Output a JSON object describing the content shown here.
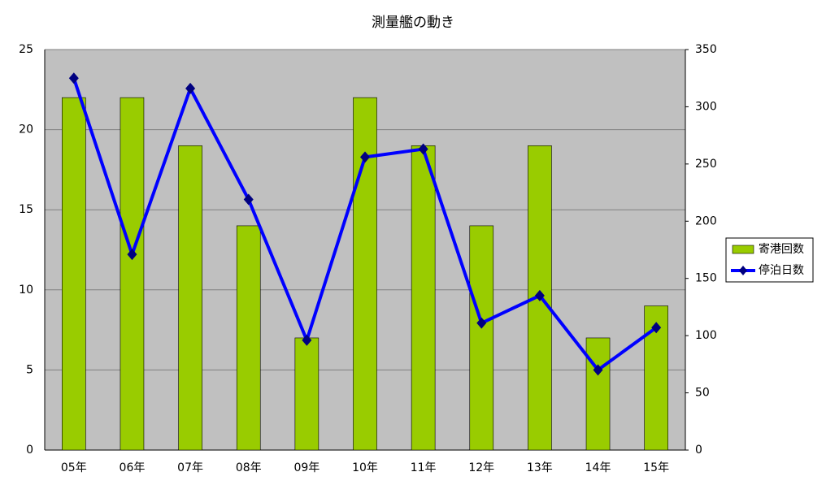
{
  "chart_data": {
    "type": "bar",
    "title": "測量艦の動き",
    "categories": [
      "05年",
      "06年",
      "07年",
      "08年",
      "09年",
      "10年",
      "11年",
      "12年",
      "13年",
      "14年",
      "15年"
    ],
    "series": [
      {
        "name": "寄港回数",
        "type": "bar",
        "color": "#99cc00",
        "values": [
          22,
          22,
          19,
          14,
          7,
          22,
          19,
          14,
          19,
          7,
          9
        ]
      },
      {
        "name": "停泊日数",
        "type": "line",
        "axis": "y2",
        "color": "#0000ff",
        "marker_color": "#000080",
        "values": [
          325,
          171,
          316,
          219,
          96,
          256,
          263,
          111,
          135,
          70,
          107
        ]
      }
    ],
    "ylim": [
      0,
      25
    ],
    "yticks": [
      0,
      5,
      10,
      15,
      20,
      25
    ],
    "y2lim": [
      0,
      350
    ],
    "y2ticks": [
      0,
      50,
      100,
      150,
      200,
      250,
      300,
      350
    ],
    "grid": true,
    "legend": "right"
  }
}
